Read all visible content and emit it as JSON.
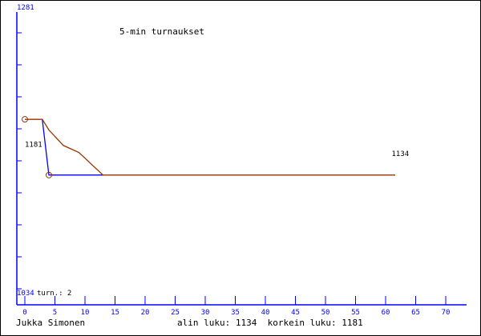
{
  "chart_data": {
    "type": "line",
    "title": "5-min turnaukset",
    "xlim": [
      0,
      73
    ],
    "ylim": [
      1034,
      1281
    ],
    "y_top_label": "1281",
    "y_bottom_label": "1034",
    "x_ticks": [
      0,
      5,
      10,
      15,
      20,
      25,
      30,
      35,
      40,
      45,
      50,
      55,
      60,
      65,
      70
    ],
    "y_tick_count": 9,
    "series": [
      {
        "name": "blue",
        "color": "#0000ff",
        "points": [
          [
            2.9,
            1181
          ],
          [
            4,
            1134
          ],
          [
            13,
            1134
          ]
        ]
      },
      {
        "name": "brown",
        "color": "#993300",
        "points": [
          [
            0,
            1181
          ],
          [
            2.9,
            1181
          ],
          [
            4,
            1172
          ],
          [
            6.4,
            1159
          ],
          [
            9,
            1153
          ],
          [
            13,
            1134
          ],
          [
            61.6,
            1134
          ]
        ]
      }
    ],
    "markers": [
      [
        0,
        1181
      ],
      [
        4,
        1134
      ]
    ],
    "annotations": [
      {
        "text": "1181",
        "x": 0,
        "y": 1158
      },
      {
        "text": "1134",
        "x": 61,
        "y": 1150
      }
    ],
    "turns_label": "turn.: 2"
  },
  "footer": {
    "author": "Jukka Simonen",
    "stats": "alin luku: 1134  korkein luku: 1181"
  }
}
